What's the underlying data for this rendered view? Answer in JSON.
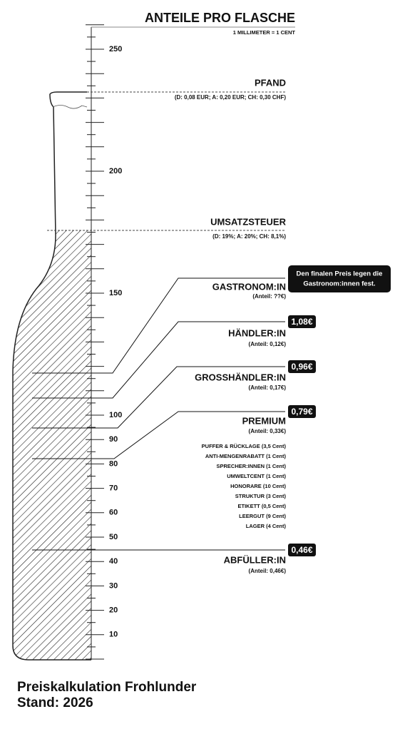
{
  "header": {
    "title": "ANTEILE PRO FLASCHE",
    "subtitle": "1 MILLIMETER = 1 CENT"
  },
  "scale": {
    "labels": [
      250,
      200,
      150,
      100,
      90,
      80,
      70,
      60,
      50,
      40,
      30,
      20,
      10
    ]
  },
  "levels": [
    {
      "title": "PFAND",
      "note": "(D: 0,08 EUR; A: 0,20 EUR; CH: 0,30 CHF)"
    },
    {
      "title": "UMSATZSTEUER",
      "note": "(D: 19%; A: 20%; CH: 8,1%)"
    }
  ],
  "shares": [
    {
      "title": "GASTRONOM:IN",
      "note": "(Anteil: ??€)",
      "callout": [
        "Den finalen Preis legen die",
        "Gastronom:innen fest."
      ]
    },
    {
      "title": "HÄNDLER:IN",
      "note": "(Anteil: 0,12€)",
      "price": "1,08€"
    },
    {
      "title": "GROSSHÄNDLER:IN",
      "note": "(Anteil: 0,17€)",
      "price": "0,96€"
    },
    {
      "title": "PREMIUM",
      "note": "(Anteil: 0,33€)",
      "price": "0,79€",
      "items": [
        "PUFFER & RÜCKLAGE (3,5 Cent)",
        "ANTI-MENGENRABATT (1 Cent)",
        "SPRECHER:INNEN (1 Cent)",
        "UMWELTCENT (1 Cent)",
        "HONORARE (10 Cent)",
        "STRUKTUR (3 Cent)",
        "ETIKETT (0,5 Cent)",
        "LEERGUT (9 Cent)",
        "LAGER (4 Cent)"
      ]
    },
    {
      "title": "ABFÜLLER:IN",
      "note": "(Anteil: 0,46€)",
      "price": "0,46€"
    }
  ],
  "footer": [
    "Preiskalkulation Frohlunder",
    "Stand: 2026"
  ]
}
